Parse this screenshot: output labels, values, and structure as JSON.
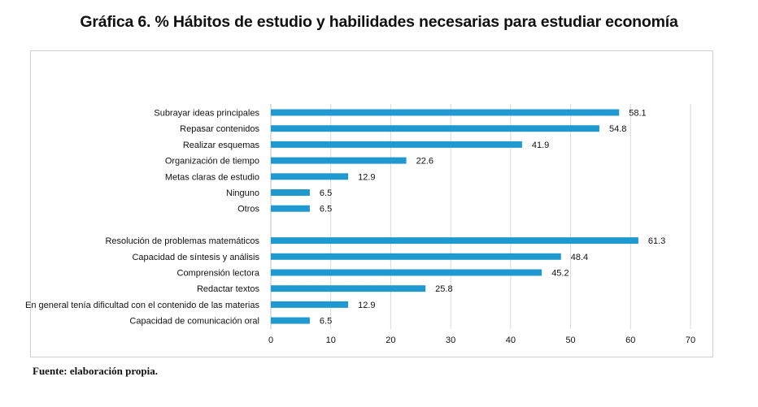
{
  "title": "Gráfica 6. % Hábitos de estudio y habilidades necesarias para estudiar economía",
  "source": "Fuente: elaboración propia.",
  "colors": {
    "bar": "#1f9ad0",
    "grid": "#d9d9d9",
    "axis": "#bfbfbf"
  },
  "chart_data": {
    "type": "bar",
    "orientation": "horizontal",
    "title": "Gráfica 6. % Hábitos de estudio y habilidades necesarias para estudiar economía",
    "xlabel": "",
    "ylabel": "",
    "xlim": [
      0,
      70
    ],
    "xticks": [
      0,
      10,
      20,
      30,
      40,
      50,
      60,
      70
    ],
    "grid": true,
    "groups": [
      {
        "categories": [
          "Subrayar ideas principales",
          "Repasar contenidos",
          "Realizar esquemas",
          "Organización de tiempo",
          "Metas claras de estudio",
          "Ninguno",
          "Otros"
        ],
        "values": [
          58.1,
          54.8,
          41.9,
          22.6,
          12.9,
          6.5,
          6.5
        ]
      },
      {
        "categories": [
          "Resolución de problemas matemáticos",
          "Capacidad de síntesis y análisis",
          "Comprensión lectora",
          "Redactar textos",
          "En general tenía dificultad con el contenido de las materias",
          "Capacidad de comunicación oral"
        ],
        "values": [
          61.3,
          48.4,
          45.2,
          25.8,
          12.9,
          6.5
        ]
      }
    ]
  }
}
